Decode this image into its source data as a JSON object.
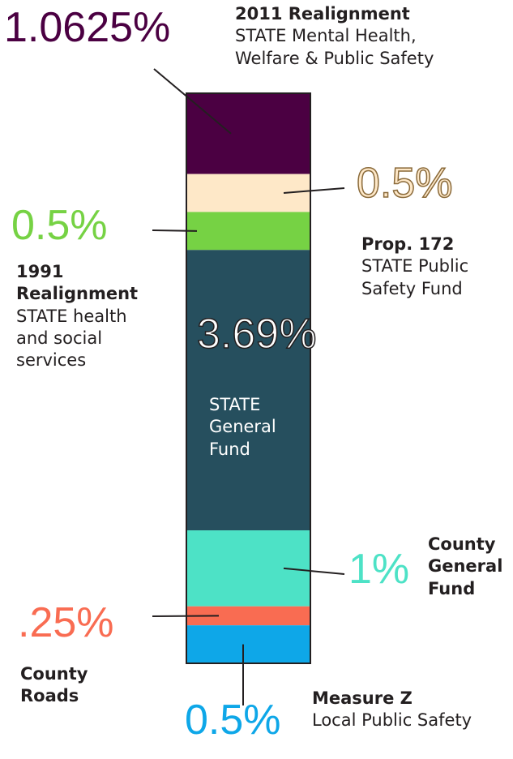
{
  "chart_data": {
    "type": "stacked_bar",
    "segments": [
      {
        "name": "2011 Realignment",
        "description": "STATE Mental Health, Welfare & Public Safety",
        "value": 1.0625,
        "value_label": "1.0625%",
        "color": "#4b0042"
      },
      {
        "name": "Prop. 172",
        "description": "STATE Public Safety Fund",
        "value": 0.5,
        "value_label": "0.5%",
        "color": "#fee8c8"
      },
      {
        "name": "1991 Realignment",
        "description": "STATE health and social services",
        "value": 0.5,
        "value_label": "0.5%",
        "color": "#76d244"
      },
      {
        "description": "STATE General Fund",
        "value": 3.69,
        "value_label": "3.69%",
        "color": "#264f5e"
      },
      {
        "name": "County General Fund",
        "value": 1,
        "value_label": "1%",
        "color": "#4de2c6"
      },
      {
        "name": "County Roads",
        "value": 0.25,
        "value_label": ".25%",
        "color": "#f96c52"
      },
      {
        "name": "Measure Z",
        "description": "Local Public Safety",
        "value": 0.5,
        "value_label": "0.5%",
        "color": "#0ea7e8"
      }
    ]
  }
}
